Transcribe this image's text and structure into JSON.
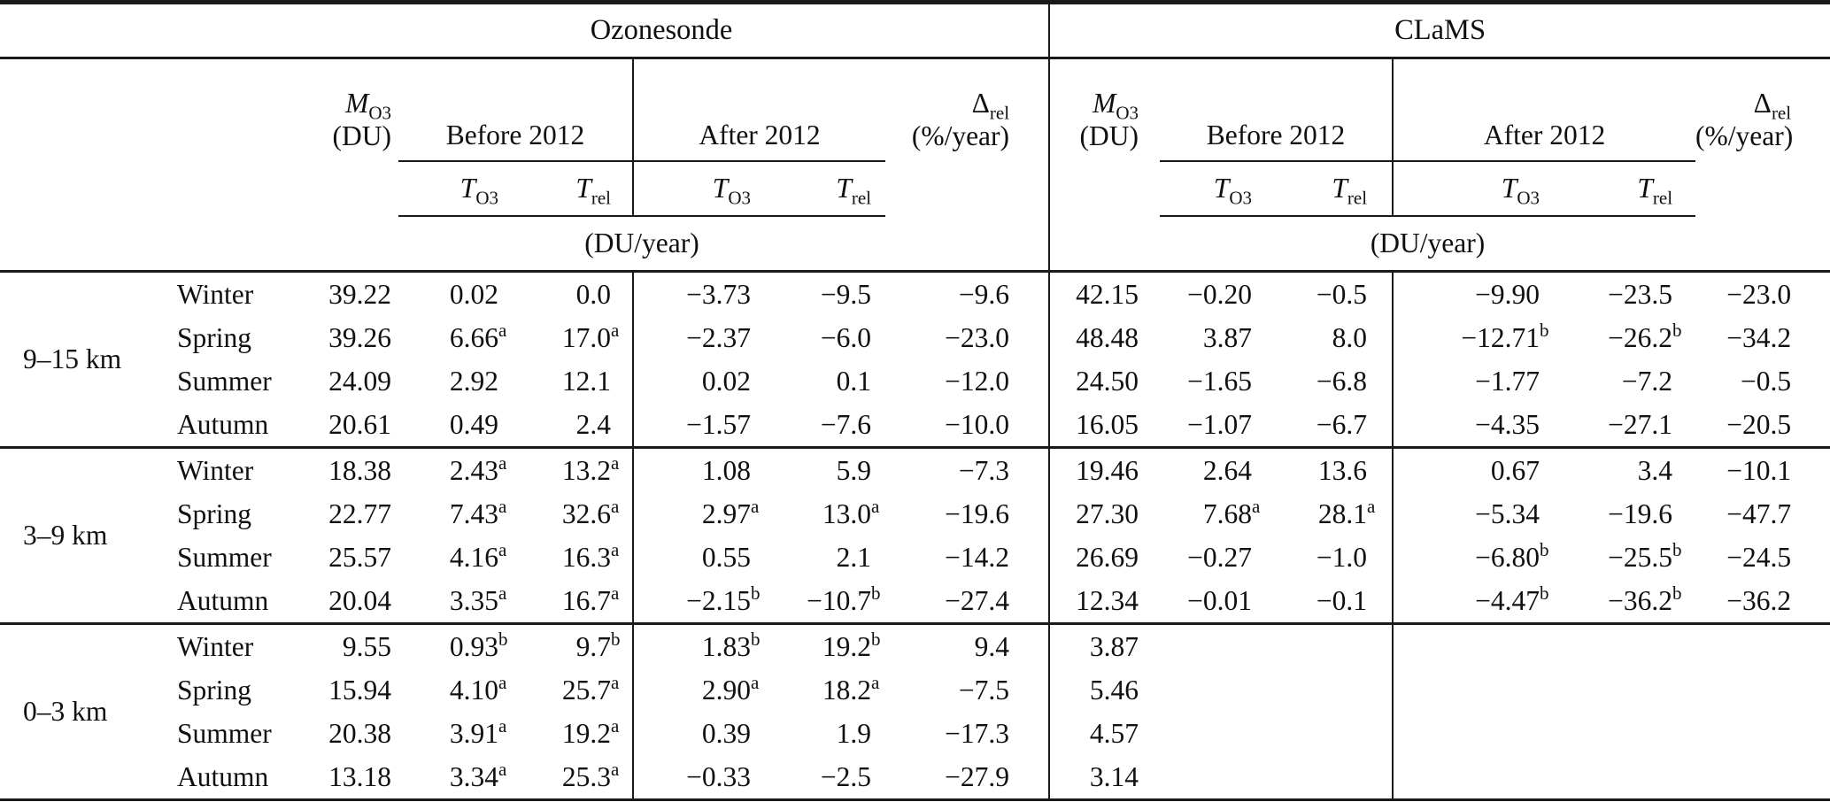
{
  "table": {
    "sections": {
      "left": "Ozonesonde",
      "right": "CLaMS"
    },
    "col_headers": {
      "m": {
        "base": "M",
        "sub": "O3",
        "unit": "(DU)"
      },
      "before": "Before 2012",
      "after": "After 2012",
      "delta": {
        "base": "Δ",
        "sub": "rel",
        "unit": "(%/year)"
      },
      "t_o3": {
        "base": "T",
        "sub": "O3"
      },
      "t_rel": {
        "base": "T",
        "sub": "rel"
      },
      "trend_unit": "(DU/year)"
    },
    "groups": [
      {
        "label": "9–15 km",
        "rows": [
          {
            "season": "Winter",
            "oz": [
              "39.22",
              "0.02",
              "0.0",
              "−3.73",
              "−9.5",
              "−9.6"
            ],
            "clams": [
              "42.15",
              "−0.20",
              "−0.5",
              "−9.90",
              "−23.5",
              "−23.0"
            ]
          },
          {
            "season": "Spring",
            "oz": [
              "39.26",
              "6.66^a",
              "17.0^a",
              "−2.37",
              "−6.0",
              "−23.0"
            ],
            "clams": [
              "48.48",
              "3.87",
              "8.0",
              "−12.71^b",
              "−26.2^b",
              "−34.2"
            ]
          },
          {
            "season": "Summer",
            "oz": [
              "24.09",
              "2.92",
              "12.1",
              "0.02",
              "0.1",
              "−12.0"
            ],
            "clams": [
              "24.50",
              "−1.65",
              "−6.8",
              "−1.77",
              "−7.2",
              "−0.5"
            ]
          },
          {
            "season": "Autumn",
            "oz": [
              "20.61",
              "0.49",
              "2.4",
              "−1.57",
              "−7.6",
              "−10.0"
            ],
            "clams": [
              "16.05",
              "−1.07",
              "−6.7",
              "−4.35",
              "−27.1",
              "−20.5"
            ]
          }
        ]
      },
      {
        "label": "3–9 km",
        "rows": [
          {
            "season": "Winter",
            "oz": [
              "18.38",
              "2.43^a",
              "13.2^a",
              "1.08",
              "5.9",
              "−7.3"
            ],
            "clams": [
              "19.46",
              "2.64",
              "13.6",
              "0.67",
              "3.4",
              "−10.1"
            ]
          },
          {
            "season": "Spring",
            "oz": [
              "22.77",
              "7.43^a",
              "32.6^a",
              "2.97^a",
              "13.0^a",
              "−19.6"
            ],
            "clams": [
              "27.30",
              "7.68^a",
              "28.1^a",
              "−5.34",
              "−19.6",
              "−47.7"
            ]
          },
          {
            "season": "Summer",
            "oz": [
              "25.57",
              "4.16^a",
              "16.3^a",
              "0.55",
              "2.1",
              "−14.2"
            ],
            "clams": [
              "26.69",
              "−0.27",
              "−1.0",
              "−6.80^b",
              "−25.5^b",
              "−24.5"
            ]
          },
          {
            "season": "Autumn",
            "oz": [
              "20.04",
              "3.35^a",
              "16.7^a",
              "−2.15^b",
              "−10.7^b",
              "−27.4"
            ],
            "clams": [
              "12.34",
              "−0.01",
              "−0.1",
              "−4.47^b",
              "−36.2^b",
              "−36.2"
            ]
          }
        ]
      },
      {
        "label": "0–3 km",
        "rows": [
          {
            "season": "Winter",
            "oz": [
              "9.55",
              "0.93^b",
              "9.7^b",
              "1.83^b",
              "19.2^b",
              "9.4"
            ],
            "clams": [
              "3.87",
              "",
              "",
              "",
              "",
              ""
            ]
          },
          {
            "season": "Spring",
            "oz": [
              "15.94",
              "4.10^a",
              "25.7^a",
              "2.90^a",
              "18.2^a",
              "−7.5"
            ],
            "clams": [
              "5.46",
              "",
              "",
              "",
              "",
              ""
            ]
          },
          {
            "season": "Summer",
            "oz": [
              "20.38",
              "3.91^a",
              "19.2^a",
              "0.39",
              "1.9",
              "−17.3"
            ],
            "clams": [
              "4.57",
              "",
              "",
              "",
              "",
              ""
            ]
          },
          {
            "season": "Autumn",
            "oz": [
              "13.18",
              "3.34^a",
              "25.3^a",
              "−0.33",
              "−2.5",
              "−27.9"
            ],
            "clams": [
              "3.14",
              "",
              "",
              "",
              "",
              ""
            ]
          }
        ]
      }
    ]
  }
}
